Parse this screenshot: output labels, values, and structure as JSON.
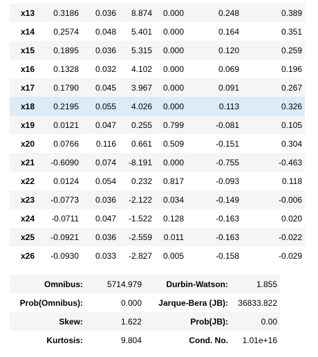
{
  "coefficients": [
    {
      "var": "x13",
      "coef": "0.3186",
      "se": "0.036",
      "t": "8.874",
      "p": "0.000",
      "lo": "0.248",
      "hi": "0.389"
    },
    {
      "var": "x14",
      "coef": "0.2574",
      "se": "0.048",
      "t": "5.401",
      "p": "0.000",
      "lo": "0.164",
      "hi": "0.351"
    },
    {
      "var": "x15",
      "coef": "0.1895",
      "se": "0.036",
      "t": "5.315",
      "p": "0.000",
      "lo": "0.120",
      "hi": "0.259"
    },
    {
      "var": "x16",
      "coef": "0.1328",
      "se": "0.032",
      "t": "4.102",
      "p": "0.000",
      "lo": "0.069",
      "hi": "0.196"
    },
    {
      "var": "x17",
      "coef": "0.1790",
      "se": "0.045",
      "t": "3.967",
      "p": "0.000",
      "lo": "0.091",
      "hi": "0.267"
    },
    {
      "var": "x18",
      "coef": "0.2195",
      "se": "0.055",
      "t": "4.026",
      "p": "0.000",
      "lo": "0.113",
      "hi": "0.326"
    },
    {
      "var": "x19",
      "coef": "0.0121",
      "se": "0.047",
      "t": "0.255",
      "p": "0.799",
      "lo": "-0.081",
      "hi": "0.105"
    },
    {
      "var": "x20",
      "coef": "0.0766",
      "se": "0.116",
      "t": "0.661",
      "p": "0.509",
      "lo": "-0.151",
      "hi": "0.304"
    },
    {
      "var": "x21",
      "coef": "-0.6090",
      "se": "0.074",
      "t": "-8.191",
      "p": "0.000",
      "lo": "-0.755",
      "hi": "-0.463"
    },
    {
      "var": "x22",
      "coef": "0.0124",
      "se": "0.054",
      "t": "0.232",
      "p": "0.817",
      "lo": "-0.093",
      "hi": "0.118"
    },
    {
      "var": "x23",
      "coef": "-0.0773",
      "se": "0.036",
      "t": "-2.122",
      "p": "0.034",
      "lo": "-0.149",
      "hi": "-0.006"
    },
    {
      "var": "x24",
      "coef": "-0.0711",
      "se": "0.047",
      "t": "-1.522",
      "p": "0.128",
      "lo": "-0.163",
      "hi": "0.020"
    },
    {
      "var": "x25",
      "coef": "-0.0921",
      "se": "0.036",
      "t": "-2.559",
      "p": "0.011",
      "lo": "-0.163",
      "hi": "-0.022"
    },
    {
      "var": "x26",
      "coef": "-0.0930",
      "se": "0.033",
      "t": "-2.827",
      "p": "0.005",
      "lo": "-0.158",
      "hi": "-0.029"
    }
  ],
  "diagnostics": [
    {
      "l1": "Omnibus:",
      "v1": "5714.979",
      "l2": "Durbin-Watson:",
      "v2": "1.855"
    },
    {
      "l1": "Prob(Omnibus):",
      "v1": "0.000",
      "l2": "Jarque-Bera (JB):",
      "v2": "36833.822"
    },
    {
      "l1": "Skew:",
      "v1": "1.622",
      "l2": "Prob(JB):",
      "v2": "0.00"
    },
    {
      "l1": "Kurtosis:",
      "v1": "9.804",
      "l2": "Cond. No.",
      "v2": "1.01e+16"
    }
  ]
}
